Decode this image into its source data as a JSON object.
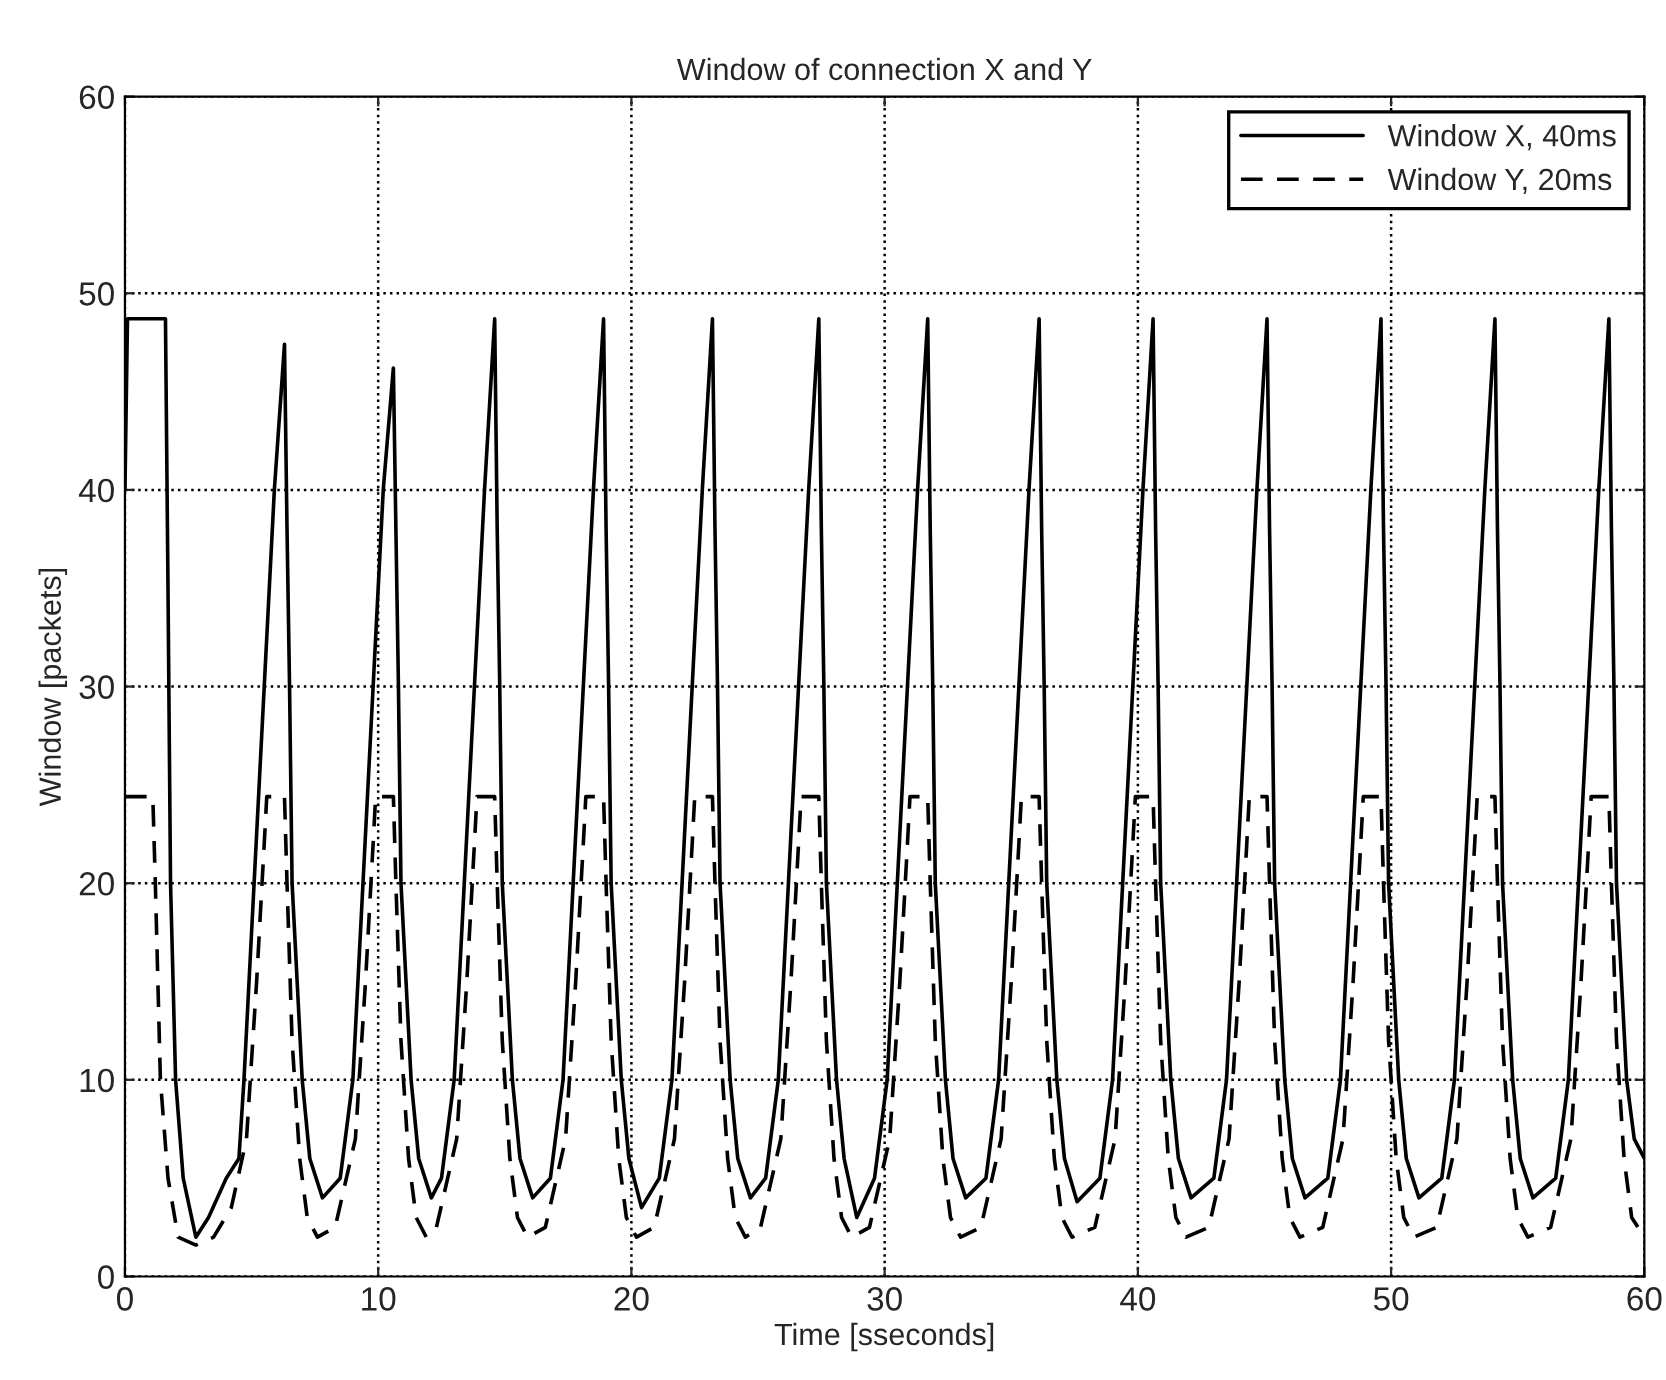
{
  "chart_data": {
    "type": "line",
    "title": "Window of connection X and Y",
    "xlabel": "Time [sseconds]",
    "ylabel": "Window [packets]",
    "xlim": [
      0,
      60
    ],
    "ylim": [
      0,
      60
    ],
    "xticks": [
      0,
      10,
      20,
      30,
      40,
      50,
      60
    ],
    "yticks": [
      0,
      10,
      20,
      30,
      40,
      50,
      60
    ],
    "grid": true,
    "legend": "top right",
    "marker": "none",
    "series": [
      {
        "name": "Window X, 40ms",
        "color": "#000000",
        "line_style": "solid",
        "x": [
          0,
          0.1,
          1.6,
          1.7,
          1.8,
          2.0,
          2.3,
          2.8,
          3.3,
          4.0,
          4.5,
          4.7,
          5.1,
          5.5,
          5.9,
          6.3,
          6.4,
          6.5,
          6.6,
          7.0,
          7.3,
          7.8,
          8.5,
          9.0,
          9.4,
          9.8,
          10.2,
          10.6,
          10.7,
          10.8,
          10.9,
          11.3,
          11.6,
          12.1,
          12.5,
          13.0,
          13.4,
          13.8,
          14.2,
          14.6,
          14.7,
          14.8,
          14.9,
          15.3,
          15.6,
          16.1,
          16.8,
          17.3,
          17.7,
          18.1,
          18.5,
          18.9,
          19.0,
          19.1,
          19.2,
          19.6,
          19.9,
          20.4,
          21.1,
          21.6,
          22.0,
          22.4,
          22.8,
          23.2,
          23.3,
          23.4,
          23.5,
          23.9,
          24.2,
          24.7,
          25.3,
          25.8,
          26.2,
          26.6,
          27.0,
          27.4,
          27.5,
          27.6,
          27.7,
          28.1,
          28.4,
          28.9,
          29.6,
          30.1,
          30.5,
          30.9,
          31.3,
          31.7,
          31.8,
          31.9,
          32.0,
          32.4,
          32.7,
          33.2,
          34.0,
          34.5,
          34.9,
          35.3,
          35.7,
          36.1,
          36.2,
          36.3,
          36.4,
          36.8,
          37.1,
          37.6,
          38.5,
          39.0,
          39.4,
          39.8,
          40.2,
          40.6,
          40.7,
          40.8,
          40.9,
          41.3,
          41.6,
          42.1,
          43.0,
          43.5,
          43.9,
          44.3,
          44.7,
          45.1,
          45.2,
          45.3,
          45.4,
          45.8,
          46.1,
          46.6,
          47.5,
          48.0,
          48.4,
          48.8,
          49.2,
          49.6,
          49.7,
          49.8,
          49.9,
          50.3,
          50.6,
          51.1,
          52.0,
          52.5,
          52.9,
          53.3,
          53.7,
          54.1,
          54.2,
          54.3,
          54.4,
          54.8,
          55.1,
          55.6,
          56.5,
          57.0,
          57.4,
          57.8,
          58.2,
          58.6,
          58.7,
          58.8,
          58.9,
          59.3,
          59.6,
          60
        ],
        "values": [
          40,
          48.7,
          48.7,
          35,
          20,
          10,
          5,
          2,
          3,
          5,
          6,
          10,
          20,
          30,
          40,
          47.4,
          38,
          30,
          20,
          10,
          6,
          4,
          5,
          10,
          20,
          30,
          40,
          46.2,
          38,
          30,
          20,
          10,
          6,
          4,
          5,
          10,
          20,
          30,
          40,
          48.7,
          38,
          30,
          20,
          10,
          6,
          4,
          5,
          10,
          20,
          30,
          40,
          48.7,
          38,
          30,
          20,
          10,
          6,
          3.5,
          5,
          10,
          20,
          30,
          40,
          48.7,
          38,
          30,
          20,
          10,
          6,
          4,
          5,
          10,
          20,
          30,
          40,
          48.7,
          38,
          30,
          20,
          10,
          6,
          3,
          5,
          10,
          20,
          30,
          40,
          48.7,
          38,
          30,
          20,
          10,
          6,
          4,
          5,
          10,
          20,
          30,
          40,
          48.7,
          38,
          30,
          20,
          10,
          6,
          3.8,
          5,
          10,
          20,
          30,
          40,
          48.7,
          38,
          30,
          20,
          10,
          6,
          4,
          5,
          10,
          20,
          30,
          40,
          48.7,
          38,
          30,
          20,
          10,
          6,
          4,
          5,
          10,
          20,
          30,
          40,
          48.7,
          38,
          30,
          20,
          10,
          6,
          4,
          5,
          10,
          20,
          30,
          40,
          48.7,
          38,
          30,
          20,
          10,
          6,
          4,
          5,
          10,
          20,
          30,
          40,
          48.7,
          38,
          30,
          20,
          10,
          7,
          6
        ]
      },
      {
        "name": "Window Y, 20ms",
        "color": "#000000",
        "line_style": "dashed",
        "x": [
          0,
          1.1,
          1.2,
          1.4,
          1.7,
          2.1,
          2.8,
          3.5,
          4.2,
          4.8,
          5.2,
          5.5,
          5.6,
          6.3,
          6.4,
          6.6,
          6.9,
          7.2,
          7.6,
          8.3,
          9.1,
          9.5,
          9.8,
          9.9,
          10.6,
          10.7,
          10.9,
          11.2,
          11.5,
          11.9,
          12.3,
          13.1,
          13.5,
          13.8,
          13.9,
          14.6,
          14.7,
          14.9,
          15.2,
          15.5,
          15.9,
          16.6,
          17.4,
          17.8,
          18.1,
          18.2,
          18.9,
          19.0,
          19.2,
          19.5,
          19.8,
          20.2,
          20.9,
          21.7,
          22.1,
          22.4,
          22.5,
          23.2,
          23.3,
          23.5,
          23.8,
          24.1,
          24.5,
          25.1,
          25.9,
          26.3,
          26.6,
          26.7,
          27.4,
          27.5,
          27.7,
          28.0,
          28.3,
          28.7,
          29.4,
          30.2,
          30.6,
          30.9,
          31.0,
          31.7,
          31.8,
          32.0,
          32.3,
          32.6,
          33.0,
          33.8,
          34.6,
          35.0,
          35.3,
          35.4,
          36.1,
          36.2,
          36.4,
          36.7,
          37.0,
          37.4,
          38.3,
          39.1,
          39.5,
          39.8,
          39.9,
          40.6,
          40.7,
          40.9,
          41.2,
          41.5,
          41.9,
          42.8,
          43.6,
          44.0,
          44.3,
          44.4,
          45.1,
          45.2,
          45.4,
          45.7,
          46.0,
          46.4,
          47.3,
          48.1,
          48.5,
          48.8,
          48.9,
          49.6,
          49.7,
          49.9,
          50.2,
          50.5,
          50.9,
          51.8,
          52.6,
          53.0,
          53.3,
          53.4,
          54.1,
          54.2,
          54.4,
          54.7,
          55.0,
          55.4,
          56.3,
          57.1,
          57.5,
          57.8,
          57.9,
          58.6,
          58.7,
          58.9,
          59.2,
          59.5,
          60
        ],
        "values": [
          24.4,
          24.4,
          20,
          10,
          5,
          2,
          1.6,
          2,
          3.5,
          7,
          15,
          22,
          24.4,
          24.4,
          20,
          12,
          6,
          3,
          2,
          2.5,
          7,
          15,
          22,
          24.4,
          24.4,
          20,
          12,
          6,
          3,
          2,
          2.5,
          7,
          15,
          22,
          24.4,
          24.4,
          20,
          12,
          6,
          3,
          2,
          2.5,
          7,
          15,
          22,
          24.4,
          24.4,
          20,
          12,
          6,
          3,
          2,
          2.5,
          7,
          15,
          22,
          24.4,
          24.4,
          20,
          12,
          6,
          3,
          2,
          2.5,
          7,
          15,
          22,
          24.4,
          24.4,
          20,
          12,
          6,
          3,
          2,
          2.5,
          7,
          15,
          22,
          24.4,
          24.4,
          20,
          12,
          6,
          3,
          2,
          2.5,
          7,
          15,
          22,
          24.4,
          24.4,
          20,
          12,
          6,
          3,
          2,
          2.5,
          7,
          15,
          22,
          24.4,
          24.4,
          20,
          12,
          6,
          3,
          2,
          2.5,
          7,
          15,
          22,
          24.4,
          24.4,
          20,
          12,
          6,
          3,
          2,
          2.5,
          7,
          15,
          22,
          24.4,
          24.4,
          20,
          12,
          6,
          3,
          2,
          2.5,
          7,
          15,
          22,
          24.4,
          24.4,
          20,
          12,
          6,
          3,
          2,
          2.5,
          7,
          15,
          22,
          24.4,
          24.4,
          20,
          12,
          6,
          3,
          2
        ]
      }
    ]
  }
}
